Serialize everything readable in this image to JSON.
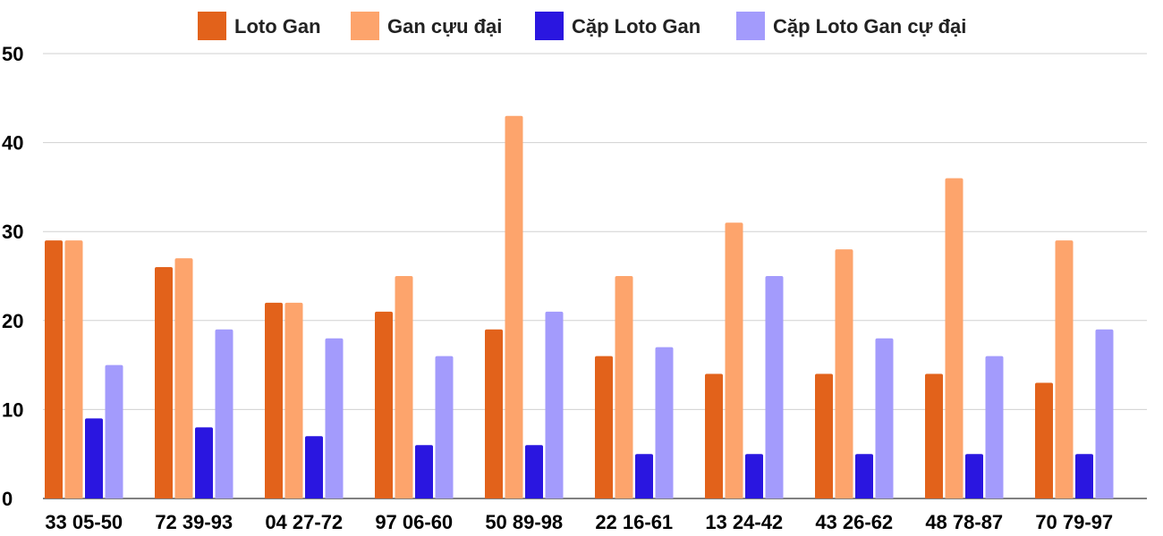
{
  "chart_data": {
    "type": "bar",
    "title": "",
    "xlabel": "",
    "ylabel": "",
    "ylim": [
      0,
      50
    ],
    "yticks": [
      "0",
      "10",
      "20",
      "30",
      "40",
      "50"
    ],
    "grid": true,
    "legend_position": "top-center",
    "categories": [
      "33 05-50",
      "72 39-93",
      "04 27-72",
      "97 06-60",
      "50 89-98",
      "22 16-61",
      "13 24-42",
      "43 26-62",
      "48 78-87",
      "70 79-97"
    ],
    "series": [
      {
        "name": "Loto Gan",
        "color": "#e2621b",
        "values": [
          29,
          26,
          22,
          21,
          19,
          16,
          14,
          14,
          14,
          13
        ]
      },
      {
        "name": "Gan cựu đại",
        "color": "#fda46c",
        "values": [
          29,
          27,
          22,
          25,
          43,
          25,
          31,
          28,
          36,
          29
        ]
      },
      {
        "name": "Cặp Loto Gan",
        "color": "#2a16e0",
        "values": [
          9,
          8,
          7,
          6,
          6,
          5,
          5,
          5,
          5,
          5
        ]
      },
      {
        "name": "Cặp Loto Gan cự đại",
        "color": "#a39bfc",
        "values": [
          15,
          19,
          18,
          16,
          21,
          17,
          25,
          18,
          16,
          19
        ]
      }
    ]
  }
}
